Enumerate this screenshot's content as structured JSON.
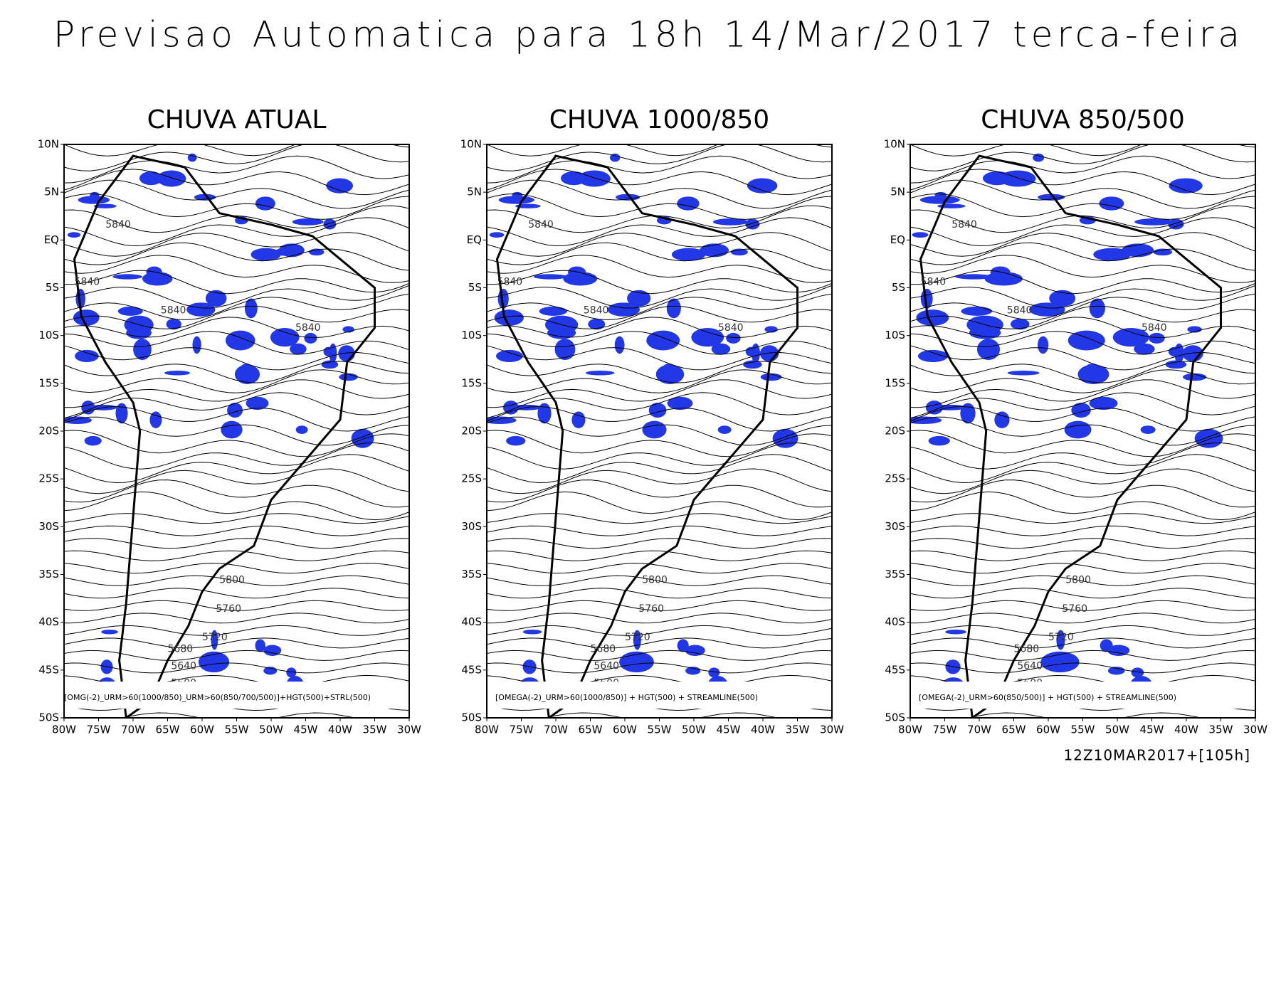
{
  "header": {
    "title": "Previsao Automatica para 18h 14/Mar/2017 terca-feira"
  },
  "panels": [
    {
      "title": "CHUVA ATUAL",
      "caption": "[OMG(-2)_URM>60(1000/850)_URM>60(850/700/500)]+HGT(500)+STRL(500)",
      "contour_labels": [
        "5840",
        "5840",
        "5840",
        "5840",
        "5800",
        "5760",
        "5720",
        "5680",
        "5640",
        "5600"
      ]
    },
    {
      "title": "CHUVA 1000/850",
      "caption": "[OMEGA(-2)_URM>60(1000/850)] + HGT(500) + STREAMLINE(500)",
      "contour_labels": [
        "5840",
        "5840",
        "5840",
        "5840",
        "5800",
        "5760",
        "5720",
        "5680",
        "5640",
        "5600"
      ]
    },
    {
      "title": "CHUVA 850/500",
      "caption": "[OMEGA(-2)_URM>60(850/500)] + HGT(500) + STREAMLINE(500)",
      "contour_labels": [
        "5840",
        "5840",
        "5840",
        "5840",
        "5800",
        "5760",
        "5720",
        "5680",
        "5640",
        "5600"
      ]
    }
  ],
  "lat_labels": [
    "10N",
    "5N",
    "EQ",
    "5S",
    "10S",
    "15S",
    "20S",
    "25S",
    "30S",
    "35S",
    "40S",
    "45S",
    "50S"
  ],
  "lon_labels": [
    "80W",
    "75W",
    "70W",
    "65W",
    "60W",
    "55W",
    "50W",
    "45W",
    "40W",
    "35W",
    "30W"
  ],
  "footer": {
    "run": "12Z10MAR2017+[105h]"
  }
}
